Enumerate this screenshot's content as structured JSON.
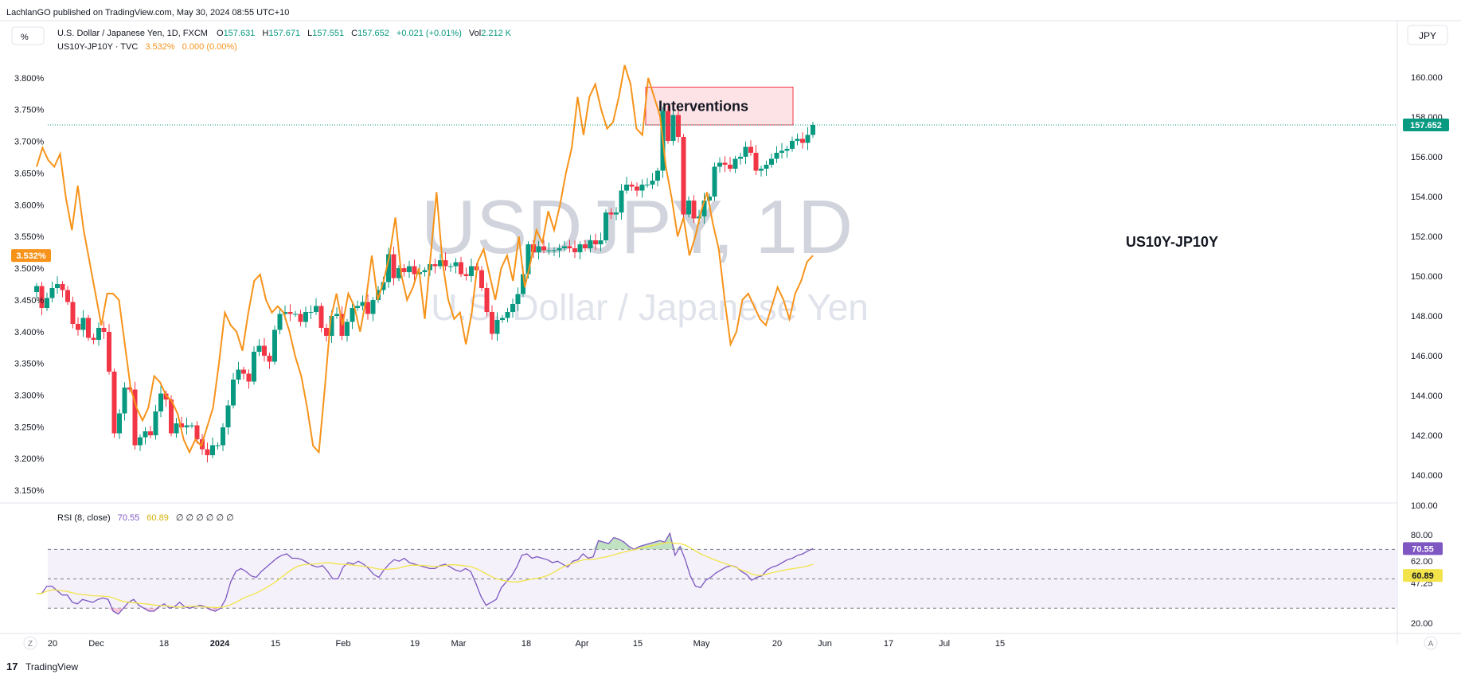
{
  "header": {
    "published_line": "LachlanGO published on TradingView.com, May 30, 2024 08:55 UTC+10",
    "scale_button": "%",
    "currency_button": "JPY",
    "line1": {
      "name": "U.S. Dollar / Japanese Yen, 1D, FXCM",
      "O_label": "O",
      "O": "157.631",
      "H_label": "H",
      "H": "157.671",
      "L_label": "L",
      "L": "157.551",
      "C_label": "C",
      "C": "157.652",
      "change": "+0.021 (+0.01%)",
      "vol_label": "Vol",
      "vol": "2.212 K"
    },
    "line2": {
      "name": "US10Y-JP10Y · TVC",
      "value": "3.532%",
      "change": "0.000 (0.00%)"
    }
  },
  "watermark": {
    "symbol": "USDJPY, 1D",
    "description": "U.S. Dollar / Japanese Yen"
  },
  "annotations": {
    "box_label": "Interventions",
    "series_label": "US10Y-JP10Y"
  },
  "rsi": {
    "title": "RSI (8, close)",
    "value": "70.55",
    "ma_value": "60.89",
    "extra": "∅ ∅ ∅ ∅ ∅ ∅",
    "axis_labels": [
      "100.00",
      "80.00",
      "62.00",
      "47.25",
      "20.00"
    ],
    "badge_value": "70.55",
    "badge_ma": "60.89"
  },
  "badges": {
    "price": "157.652",
    "spread": "3.532%"
  },
  "footer": {
    "brand": "TradingView",
    "z_button": "Z",
    "a_button": "A"
  },
  "colors": {
    "up": "#089981",
    "down": "#f23645",
    "spread": "#f7931a",
    "rsi": "#7e57c2",
    "rsi_ma": "#f2e34a",
    "box_fill": "#fde2e6",
    "box_border": "#f23645"
  },
  "chart_data": {
    "type": "candlestick+line",
    "x_axis": {
      "ticks": [
        {
          "label": "20",
          "date": "2023-11-20"
        },
        {
          "label": "Dec",
          "date": "2023-12-01"
        },
        {
          "label": "18",
          "date": "2023-12-18"
        },
        {
          "label": "2024",
          "date": "2024-01-01",
          "bold": true
        },
        {
          "label": "15",
          "date": "2024-01-15"
        },
        {
          "label": "Feb",
          "date": "2024-02-01"
        },
        {
          "label": "19",
          "date": "2024-02-19"
        },
        {
          "label": "Mar",
          "date": "2024-03-01"
        },
        {
          "label": "18",
          "date": "2024-03-18"
        },
        {
          "label": "Apr",
          "date": "2024-04-01"
        },
        {
          "label": "15",
          "date": "2024-04-15"
        },
        {
          "label": "May",
          "date": "2024-05-01"
        },
        {
          "label": "20",
          "date": "2024-05-20"
        },
        {
          "label": "Jun",
          "date": "2024-06-01"
        },
        {
          "label": "17",
          "date": "2024-06-17"
        },
        {
          "label": "Jul",
          "date": "2024-07-01"
        },
        {
          "label": "15",
          "date": "2024-07-15"
        }
      ]
    },
    "right_axis": {
      "name": "USDJPY",
      "ylim": [
        138.6,
        161.4
      ],
      "ticks": [
        "160.000",
        "158.000",
        "156.000",
        "154.000",
        "152.000",
        "150.000",
        "148.000",
        "146.000",
        "144.000",
        "142.000",
        "140.000"
      ]
    },
    "left_axis": {
      "name": "US10Y-JP10Y",
      "ylim": [
        3.13,
        3.845
      ],
      "ticks": [
        "3.800%",
        "3.750%",
        "3.700%",
        "3.650%",
        "3.600%",
        "3.550%",
        "3.500%",
        "3.450%",
        "3.400%",
        "3.350%",
        "3.300%",
        "3.250%",
        "3.200%",
        "3.150%"
      ]
    },
    "usdjpy_closes": [
      149.5,
      148.4,
      148.9,
      149.4,
      149.6,
      149.3,
      148.7,
      147.6,
      147.3,
      147.9,
      146.9,
      146.8,
      147.4,
      147.2,
      145.2,
      142.1,
      143.1,
      144.4,
      144.3,
      141.5,
      141.9,
      142.2,
      142.0,
      143.2,
      144.1,
      143.8,
      142.1,
      142.6,
      142.4,
      142.5,
      142.5,
      141.8,
      141.3,
      141.0,
      141.5,
      141.5,
      142.4,
      143.5,
      144.8,
      145.3,
      145.1,
      144.7,
      146.2,
      146.5,
      146.0,
      145.7,
      147.3,
      148.1,
      148.2,
      148.1,
      148.1,
      147.7,
      148.2,
      148.2,
      148.5,
      147.4,
      147.0,
      148.0,
      148.1,
      147.0,
      147.7,
      148.4,
      148.5,
      148.7,
      148.1,
      148.8,
      149.3,
      149.7,
      151.1,
      149.9,
      150.4,
      150.2,
      150.5,
      150.1,
      150.2,
      150.3,
      150.6,
      150.5,
      150.8,
      150.5,
      150.5,
      150.7,
      150.1,
      150.0,
      150.5,
      150.3,
      149.4,
      148.2,
      147.1,
      147.8,
      147.9,
      148.2,
      148.6,
      149.1,
      150.1,
      151.6,
      151.2,
      151.5,
      151.3,
      151.3,
      151.3,
      151.4,
      151.5,
      151.4,
      151.2,
      151.6,
      151.4,
      151.8,
      151.6,
      151.8,
      153.2,
      153.1,
      153.2,
      154.3,
      154.6,
      154.5,
      154.3,
      154.6,
      154.6,
      154.8,
      155.3,
      158.3,
      156.8,
      158.1,
      157.0,
      153.1,
      153.8,
      152.9,
      153.0,
      153.8,
      154.0,
      155.5,
      155.7,
      155.6,
      155.4,
      155.9,
      156.0,
      156.5,
      156.2,
      155.3,
      155.4,
      155.6,
      155.9,
      156.2,
      156.3,
      156.4,
      156.8,
      156.9,
      156.7,
      157.1,
      157.6
    ],
    "usdjpy_x_range": [
      "2023-11-16",
      "2024-05-29"
    ],
    "spread_series": [
      3.66,
      3.69,
      3.67,
      3.66,
      3.68,
      3.61,
      3.56,
      3.63,
      3.56,
      3.51,
      3.46,
      3.41,
      3.46,
      3.46,
      3.45,
      3.38,
      3.31,
      3.28,
      3.26,
      3.28,
      3.33,
      3.32,
      3.3,
      3.29,
      3.27,
      3.23,
      3.21,
      3.23,
      3.22,
      3.25,
      3.28,
      3.35,
      3.43,
      3.41,
      3.4,
      3.37,
      3.43,
      3.48,
      3.49,
      3.45,
      3.43,
      3.44,
      3.43,
      3.4,
      3.36,
      3.33,
      3.28,
      3.22,
      3.21,
      3.31,
      3.42,
      3.46,
      3.41,
      3.46,
      3.44,
      3.4,
      3.45,
      3.52,
      3.45,
      3.48,
      3.52,
      3.58,
      3.49,
      3.45,
      3.47,
      3.5,
      3.42,
      3.52,
      3.62,
      3.51,
      3.45,
      3.42,
      3.43,
      3.38,
      3.43,
      3.51,
      3.53,
      3.49,
      3.45,
      3.5,
      3.52,
      3.48,
      3.55,
      3.47,
      3.51,
      3.56,
      3.54,
      3.59,
      3.56,
      3.6,
      3.65,
      3.69,
      3.77,
      3.71,
      3.77,
      3.79,
      3.75,
      3.72,
      3.73,
      3.77,
      3.82,
      3.79,
      3.72,
      3.71,
      3.8,
      3.77,
      3.74,
      3.66,
      3.61,
      3.55,
      3.58,
      3.52,
      3.55,
      3.59,
      3.62,
      3.57,
      3.53,
      3.45,
      3.38,
      3.4,
      3.45,
      3.46,
      3.44,
      3.42,
      3.41,
      3.44,
      3.47,
      3.45,
      3.42,
      3.46,
      3.48,
      3.51,
      3.52
    ],
    "spread_x_range": [
      "2023-11-16",
      "2024-05-29"
    ],
    "interventions_box": {
      "y_range": [
        157.6,
        159.5
      ],
      "x_range": [
        "2024-04-17",
        "2024-05-24"
      ]
    },
    "rsi_series": [
      40,
      40,
      45,
      45,
      42,
      39,
      39,
      34,
      33,
      36,
      35,
      34,
      36,
      37,
      36,
      28,
      26,
      30,
      34,
      36,
      32,
      30,
      28,
      28,
      31,
      33,
      30,
      31,
      34,
      31,
      30,
      31,
      32,
      31,
      29,
      28,
      30,
      36,
      48,
      55,
      57,
      55,
      52,
      51,
      55,
      58,
      61,
      64,
      66,
      67,
      64,
      64,
      63,
      61,
      59,
      58,
      59,
      55,
      50,
      50,
      58,
      61,
      60,
      62,
      60,
      57,
      53,
      51,
      56,
      60,
      63,
      62,
      64,
      61,
      60,
      59,
      58,
      57,
      57,
      59,
      60,
      58,
      56,
      55,
      57,
      55,
      47,
      38,
      32,
      34,
      36,
      44,
      48,
      52,
      58,
      66,
      67,
      64,
      65,
      64,
      63,
      61,
      62,
      60,
      58,
      62,
      63,
      67,
      64,
      65,
      76,
      75,
      74,
      78,
      77,
      75,
      72,
      70,
      72,
      73,
      74,
      75,
      76,
      75,
      81,
      66,
      72,
      63,
      52,
      45,
      44,
      49,
      51,
      54,
      56,
      58,
      59,
      58,
      55,
      53,
      49,
      51,
      52,
      56,
      58,
      59,
      61,
      63,
      64,
      66,
      67,
      69,
      70.55
    ],
    "rsi_ylim": [
      15,
      100
    ],
    "rsi_levels": [
      70,
      50,
      30
    ]
  }
}
